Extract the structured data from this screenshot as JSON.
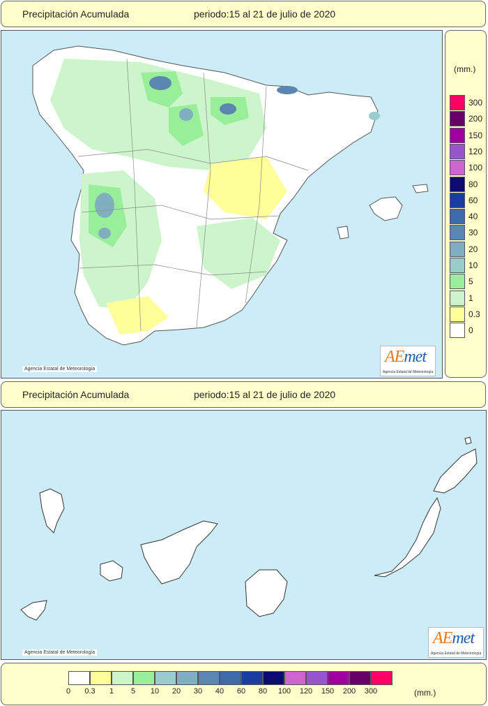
{
  "header_top": {
    "title": "Precipitación Acumulada",
    "period": "periodo:15 al 21 de julio de 2020"
  },
  "header_bottom": {
    "title": "Precipitación Acumulada",
    "period": "periodo:15 al 21 de julio de 2020"
  },
  "copyright": "Agencia Estatal de Meteorología",
  "logo": {
    "word_a": "A",
    "word_e": "E",
    "word_met": "met",
    "subtitle": "Agencia Estatal de Meteorología"
  },
  "legend": {
    "unit": "(mm.)",
    "classes": [
      {
        "label": "0",
        "color": "#ffffff"
      },
      {
        "label": "0.3",
        "color": "#ffff99"
      },
      {
        "label": "1",
        "color": "#ccf5cc"
      },
      {
        "label": "5",
        "color": "#99ee99"
      },
      {
        "label": "10",
        "color": "#99cccc"
      },
      {
        "label": "20",
        "color": "#80b0c0"
      },
      {
        "label": "30",
        "color": "#5a86b0"
      },
      {
        "label": "40",
        "color": "#3d6aa8"
      },
      {
        "label": "60",
        "color": "#1a3ea0"
      },
      {
        "label": "80",
        "color": "#0c0c70"
      },
      {
        "label": "100",
        "color": "#cc66cc"
      },
      {
        "label": "120",
        "color": "#9955cc"
      },
      {
        "label": "150",
        "color": "#a000a0"
      },
      {
        "label": "200",
        "color": "#660066"
      },
      {
        "label": "300",
        "color": "#ff0066"
      }
    ]
  },
  "colors": {
    "sea": "#ccecf8",
    "panel": "#ffffcc",
    "border": "#666666"
  }
}
